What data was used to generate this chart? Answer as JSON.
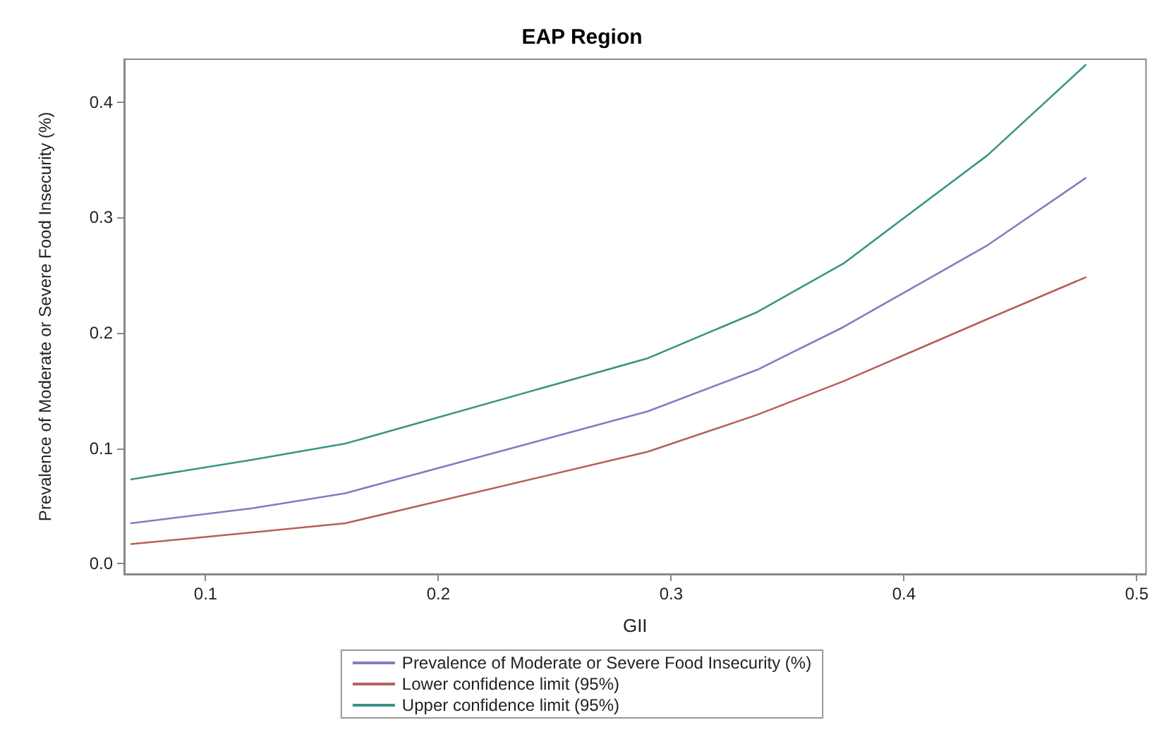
{
  "chart_data": {
    "type": "line",
    "title": "EAP Region",
    "xlabel": "GII",
    "ylabel": "Prevalence of Moderate or Severe Food Insecurity (%)",
    "x": [
      0.068,
      0.12,
      0.16,
      0.29,
      0.337,
      0.374,
      0.436,
      0.478
    ],
    "series": [
      {
        "name": "Prevalence of Moderate or Severe Food Insecurity (%)",
        "color": "#7f7fbf",
        "values": [
          0.035,
          0.048,
          0.061,
          0.132,
          0.168,
          0.205,
          0.276,
          0.334
        ]
      },
      {
        "name": "Lower confidence limit (95%)",
        "color": "#b8605a",
        "values": [
          0.017,
          0.027,
          0.035,
          0.097,
          0.129,
          0.158,
          0.212,
          0.248
        ]
      },
      {
        "name": "Upper confidence limit (95%)",
        "color": "#3a9486",
        "values": [
          0.073,
          0.09,
          0.104,
          0.178,
          0.218,
          0.26,
          0.354,
          0.432
        ]
      }
    ],
    "xlim": [
      0.065,
      0.504
    ],
    "xticks": [
      {
        "value": 0.1,
        "label": "0.1"
      },
      {
        "value": 0.2,
        "label": "0.2"
      },
      {
        "value": 0.3,
        "label": "0.3"
      },
      {
        "value": 0.4,
        "label": "0.4"
      },
      {
        "value": 0.5,
        "label": "0.5"
      }
    ],
    "ylim": [
      -0.009,
      0.437
    ],
    "yticks": [
      {
        "value": 0,
        "label": "0.0"
      },
      {
        "value": 0.1,
        "label": "0.1"
      },
      {
        "value": 0.2,
        "label": "0.2"
      },
      {
        "value": 0.3,
        "label": "0.3"
      },
      {
        "value": 0.4,
        "label": "0.4"
      }
    ],
    "grid": false,
    "legend": "bottom",
    "marker": "none",
    "line_style": "solid"
  }
}
